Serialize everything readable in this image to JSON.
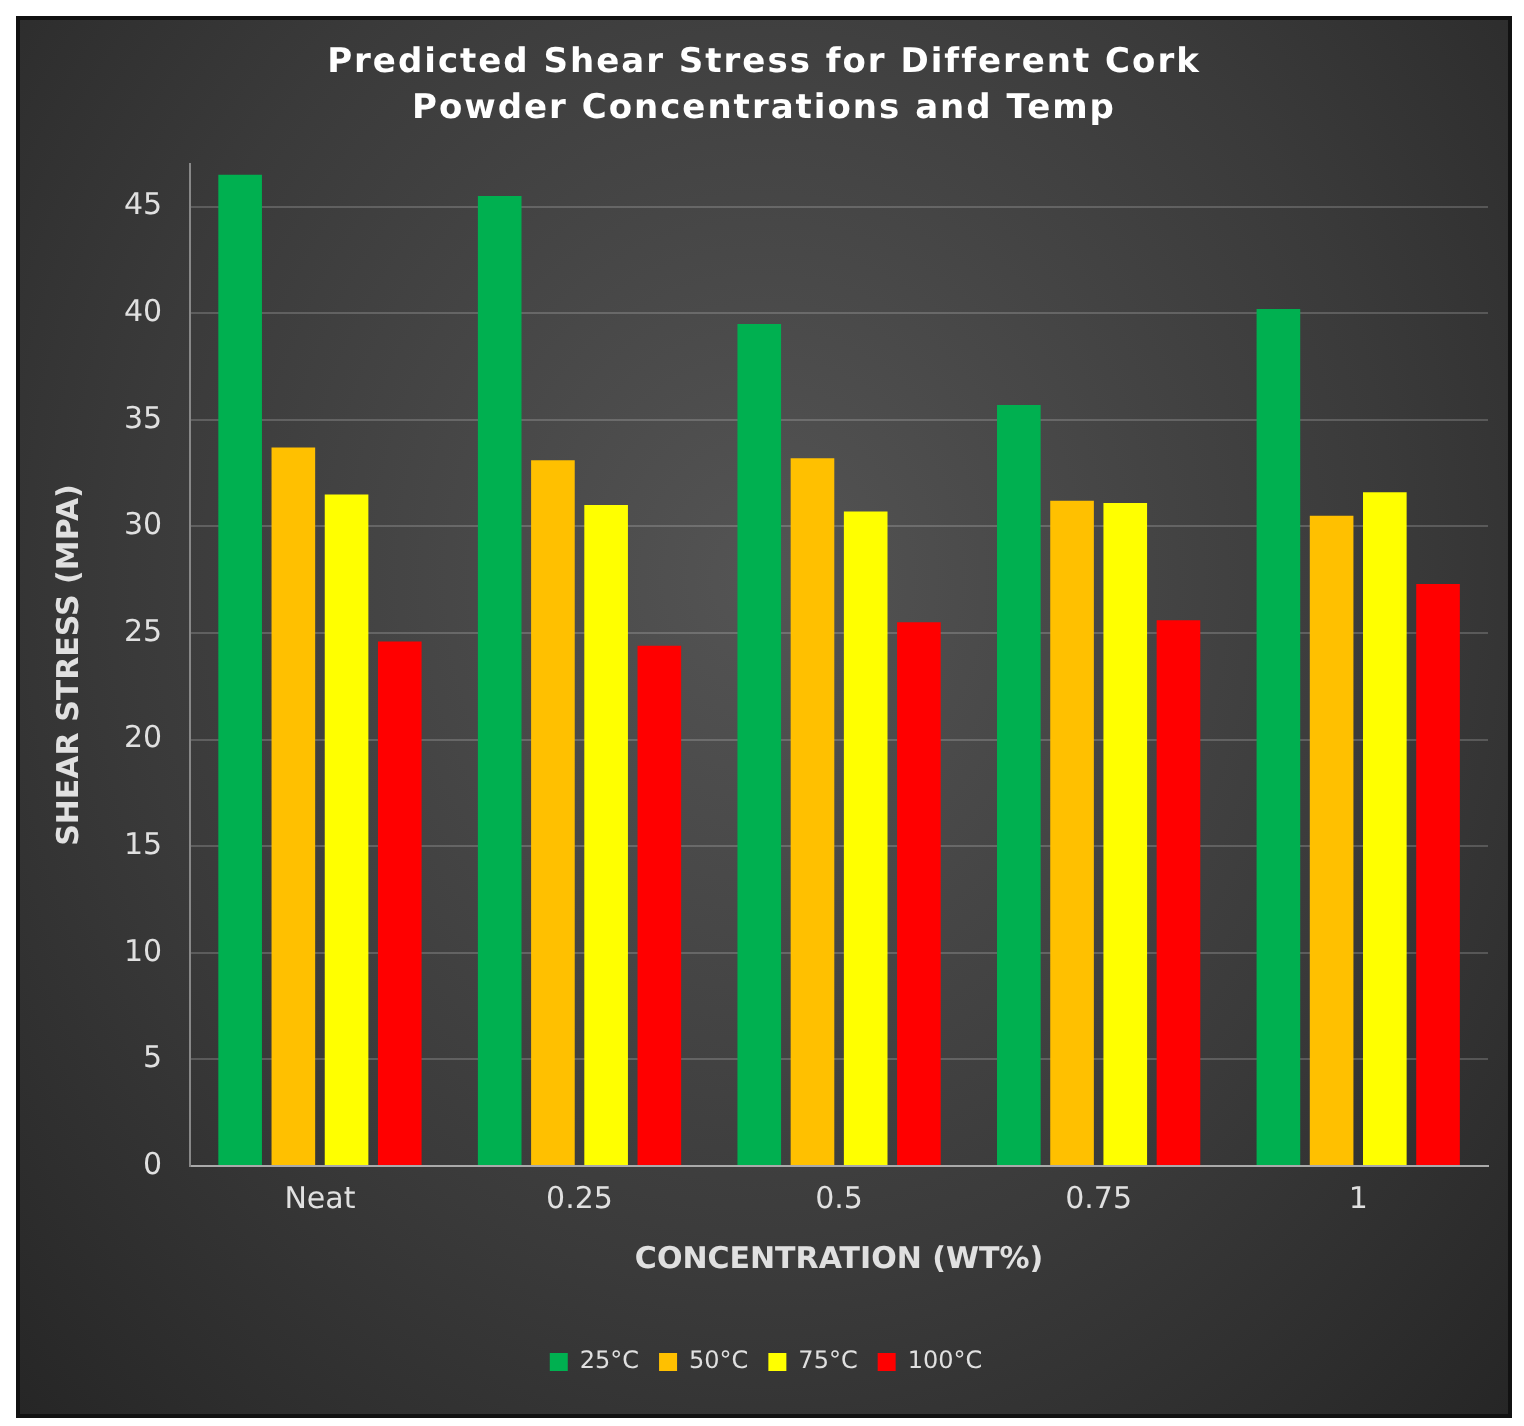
{
  "chart_data": {
    "type": "bar",
    "title": "Predicted Shear Stress for Different Cork Powder Concentrations and Temp",
    "xlabel": "CONCENTRATION (WT%)",
    "ylabel": "SHEAR STRESS (MPA)",
    "categories": [
      "Neat",
      "0.25",
      "0.5",
      "0.75",
      "1"
    ],
    "series": [
      {
        "name": "25°C",
        "color": "#00b050",
        "values": [
          46.5,
          45.5,
          39.5,
          35.7,
          40.2
        ]
      },
      {
        "name": "50°C",
        "color": "#ffc000",
        "values": [
          33.7,
          33.1,
          33.2,
          31.2,
          30.5
        ]
      },
      {
        "name": "75°C",
        "color": "#ffff00",
        "values": [
          31.5,
          31.0,
          30.7,
          31.1,
          31.6
        ]
      },
      {
        "name": "100°C",
        "color": "#ff0000",
        "values": [
          24.6,
          24.4,
          25.5,
          25.6,
          27.3
        ]
      }
    ],
    "ylim": [
      0,
      47
    ],
    "yticks": [
      0,
      5,
      10,
      15,
      20,
      25,
      30,
      35,
      40,
      45
    ],
    "grid": "y",
    "legend": "bottom"
  }
}
